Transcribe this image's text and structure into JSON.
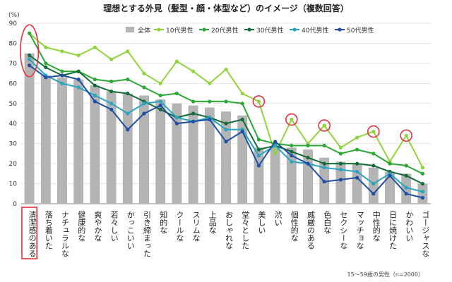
{
  "chart_data": {
    "type": "bar",
    "title": "理想とする外見（髪型・顔・体型など）のイメージ（複数回答）",
    "ylabel": "(%)",
    "ylim": [
      0,
      90
    ],
    "yticks": [
      0,
      10,
      20,
      30,
      40,
      50,
      60,
      70,
      80,
      90
    ],
    "note": "15～59歳の男性（n=2000）",
    "grid": true,
    "legend_position": "top-right",
    "categories": [
      "清潔感のある",
      "落ち着いた",
      "ナチュラルな",
      "健康的な",
      "爽やかな",
      "若々しい",
      "かっこいい",
      "引き締まった",
      "知的な",
      "クールな",
      "スリムな",
      "上品な",
      "おしゃれな",
      "堂々とした",
      "美しい",
      "渋い",
      "個性的な",
      "威厳のある",
      "色白な",
      "セクシーな",
      "マッチョな",
      "中性的な",
      "日に焼けた",
      "かわいい",
      "ゴージャスな"
    ],
    "series": [
      {
        "name": "全体",
        "kind": "bar",
        "color": "#b4b4b4",
        "values": [
          75,
          64,
          63,
          62,
          59,
          56,
          55,
          54,
          52,
          50,
          49,
          48,
          46,
          44,
          28,
          29,
          28,
          27,
          23,
          21,
          20,
          18,
          16,
          15,
          10
        ]
      },
      {
        "name": "10代男性",
        "kind": "line",
        "color": "#8fd43c",
        "values": [
          85,
          78,
          76,
          74,
          78,
          72,
          76,
          65,
          60,
          71,
          66,
          60,
          67,
          55,
          51,
          25,
          42,
          30,
          39,
          28,
          33,
          36,
          21,
          34,
          18
        ]
      },
      {
        "name": "20代男性",
        "kind": "line",
        "color": "#2aa835",
        "values": [
          85,
          70,
          66,
          66,
          62,
          61,
          62,
          58,
          54,
          55,
          51,
          51,
          51,
          50,
          32,
          30,
          29,
          29,
          29,
          25,
          27,
          25,
          20,
          19,
          15
        ]
      },
      {
        "name": "30代男性",
        "kind": "line",
        "color": "#126b38",
        "values": [
          74,
          68,
          64,
          66,
          59,
          56,
          55,
          51,
          47,
          43,
          45,
          43,
          40,
          42,
          27,
          29,
          26,
          23,
          20,
          20,
          20,
          19,
          16,
          14,
          10
        ]
      },
      {
        "name": "40代男性",
        "kind": "line",
        "color": "#2aa4bf",
        "values": [
          72,
          64,
          60,
          58,
          54,
          50,
          45,
          50,
          51,
          43,
          41,
          43,
          37,
          37,
          24,
          29,
          21,
          20,
          18,
          17,
          16,
          10,
          15,
          8,
          6
        ]
      },
      {
        "name": "50代男性",
        "kind": "line",
        "color": "#1f4ea3",
        "values": [
          69,
          63,
          64,
          62,
          51,
          47,
          37,
          45,
          49,
          40,
          41,
          42,
          31,
          36,
          19,
          31,
          24,
          20,
          11,
          12,
          13,
          5,
          14,
          5,
          3
        ]
      }
    ],
    "highlight_points": [
      {
        "series": "10代男性",
        "category": "清潔感のある"
      },
      {
        "series": "10代男性",
        "category": "美しい"
      },
      {
        "series": "10代男性",
        "category": "個性的な"
      },
      {
        "series": "10代男性",
        "category": "色白な"
      },
      {
        "series": "10代男性",
        "category": "中性的な"
      },
      {
        "series": "10代男性",
        "category": "かわいい"
      }
    ],
    "highlight_category": "清潔感のある",
    "highlight_color": "#e8303a"
  }
}
